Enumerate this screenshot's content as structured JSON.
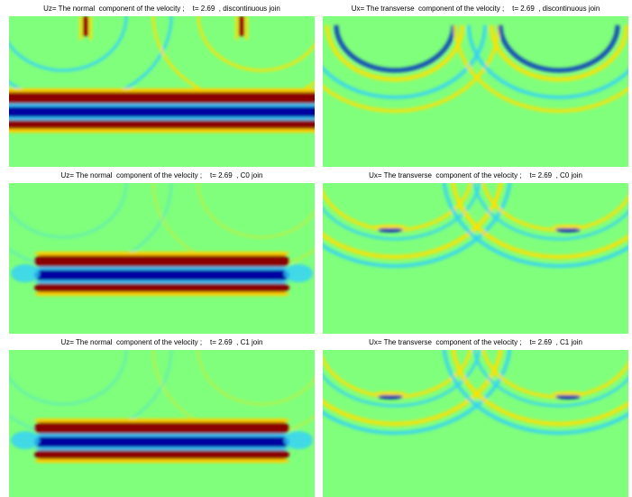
{
  "panels": [
    {
      "title": "Uz= The normal  component of the velocity ;    t= 2.69  , discontinuous join"
    },
    {
      "title": "Ux= The transverse  component of the velocity ;    t= 2.69  , discontinuous join"
    },
    {
      "title": "Uz= The normal  component of the velocity ;    t= 2.69  , C0 join"
    },
    {
      "title": "Ux= The transverse  component of the velocity ;    t= 2.69  , C0 join"
    },
    {
      "title": "Uz= The normal  component of the velocity ;    t= 2.69  , C1 join"
    },
    {
      "title": "Ux= The transverse  component of the velocity ;    t= 2.69  , C1 join"
    }
  ]
}
